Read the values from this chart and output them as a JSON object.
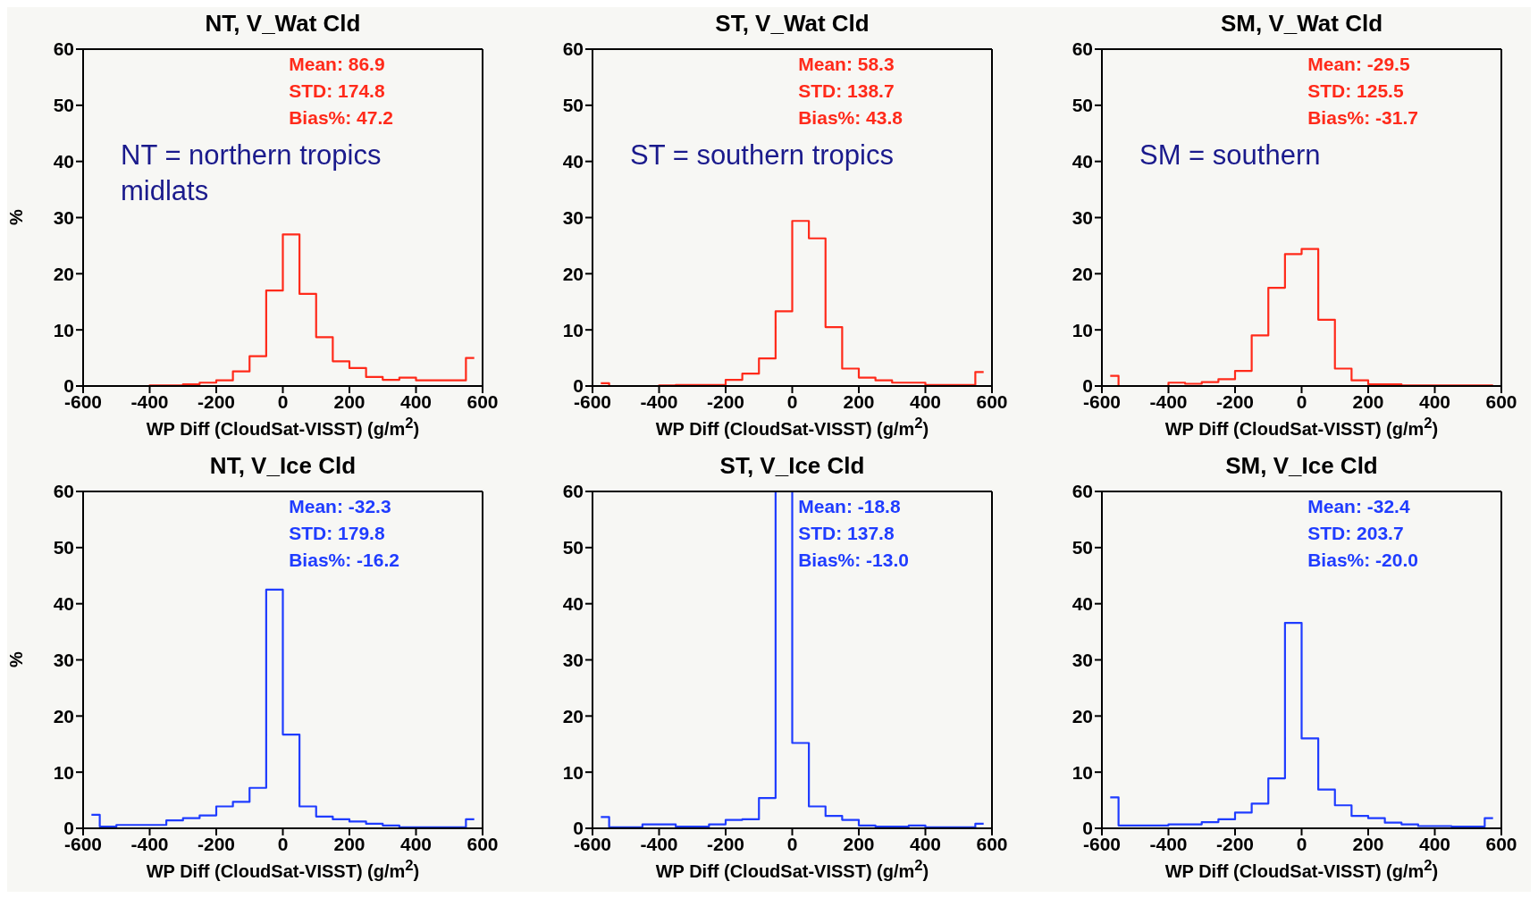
{
  "chart_data": [
    {
      "type": "histogram",
      "title": "NT, V_Wat Cld",
      "xlabel": "WP Diff (CloudSat-VISST) (g/m$^{2}$)",
      "ylabel": "%",
      "color": "#ff2a1a",
      "xlim": [
        -600,
        600
      ],
      "xticks": [
        -600,
        -400,
        -200,
        0,
        200,
        400,
        600
      ],
      "ylim": [
        0,
        60
      ],
      "yticks": [
        0,
        10,
        20,
        30,
        40,
        50,
        60
      ],
      "bins": [
        -575,
        -550,
        -500,
        -450,
        -400,
        -350,
        -300,
        -250,
        -200,
        -150,
        -100,
        -50,
        0,
        50,
        100,
        150,
        200,
        250,
        300,
        350,
        400,
        450,
        500,
        550,
        575
      ],
      "values": [
        0,
        0,
        0,
        0,
        0.1,
        0.1,
        0.3,
        0.6,
        1,
        2.6,
        5.3,
        17,
        27,
        16.4,
        8.7,
        4.4,
        3.2,
        1.6,
        1.1,
        1.5,
        1,
        1,
        1,
        5
      ],
      "annotations": [
        "Mean: 86.9",
        "STD: 174.8",
        "Bias%: 47.2",
        "NT = northern tropics midlats"
      ]
    },
    {
      "type": "histogram",
      "title": "ST, V_Wat Cld",
      "xlabel": "WP Diff (CloudSat-VISST) (g/m$^{2}$)",
      "color": "#ff2a1a",
      "xlim": [
        -600,
        600
      ],
      "xticks": [
        -600,
        -400,
        -200,
        0,
        200,
        400,
        600
      ],
      "ylim": [
        0,
        60
      ],
      "yticks": [
        0,
        10,
        20,
        30,
        40,
        50,
        60
      ],
      "bins": [
        -575,
        -550,
        -500,
        -450,
        -400,
        -350,
        -300,
        -250,
        -200,
        -150,
        -100,
        -50,
        0,
        50,
        100,
        150,
        200,
        250,
        300,
        350,
        400,
        450,
        500,
        550,
        575
      ],
      "values": [
        0.5,
        0,
        0,
        0,
        0.1,
        0.2,
        0.2,
        0.2,
        1.1,
        2.2,
        4.9,
        13.3,
        29.4,
        26.3,
        10.5,
        3.1,
        1.5,
        1,
        0.6,
        0.6,
        0.2,
        0.2,
        0.2,
        2.5
      ],
      "annotations": [
        "Mean: 58.3",
        "STD: 138.7",
        "Bias%: 43.8",
        "ST = southern tropics"
      ]
    },
    {
      "type": "histogram",
      "title": "SM, V_Wat Cld",
      "xlabel": "WP Diff (CloudSat-VISST) (g/m$^{2}$)",
      "color": "#ff2a1a",
      "xlim": [
        -600,
        600
      ],
      "xticks": [
        -600,
        -400,
        -200,
        0,
        200,
        400,
        600
      ],
      "ylim": [
        0,
        60
      ],
      "yticks": [
        0,
        10,
        20,
        30,
        40,
        50,
        60
      ],
      "bins": [
        -575,
        -550,
        -500,
        -450,
        -400,
        -350,
        -300,
        -250,
        -200,
        -150,
        -100,
        -50,
        0,
        50,
        100,
        150,
        200,
        250,
        300,
        350,
        400,
        450,
        500,
        550,
        575
      ],
      "values": [
        1.8,
        0,
        0,
        0,
        0.6,
        0.4,
        0.7,
        1.2,
        2.7,
        9,
        17.5,
        23.5,
        24.4,
        11.8,
        3.1,
        1,
        0.3,
        0.3,
        0.1,
        0.1,
        0.1,
        0.1,
        0.1,
        0.1
      ],
      "annotations": [
        "Mean: -29.5",
        "STD: 125.5",
        "Bias%: -31.7",
        "SM = southern"
      ]
    },
    {
      "type": "histogram",
      "title": "NT, V_Ice Cld",
      "xlabel": "WP Diff (CloudSat-VISST) (g/m$^{2}$)",
      "ylabel": "%",
      "color": "#1f3cff",
      "xlim": [
        -600,
        600
      ],
      "xticks": [
        -600,
        -400,
        -200,
        0,
        200,
        400,
        600
      ],
      "ylim": [
        0,
        60
      ],
      "yticks": [
        0,
        10,
        20,
        30,
        40,
        50,
        60
      ],
      "bins": [
        -575,
        -550,
        -500,
        -450,
        -400,
        -350,
        -300,
        -250,
        -200,
        -150,
        -100,
        -50,
        0,
        50,
        100,
        150,
        200,
        250,
        300,
        350,
        400,
        450,
        500,
        550,
        575
      ],
      "values": [
        2.4,
        0.3,
        0.6,
        0.6,
        0.6,
        1.4,
        1.8,
        2.3,
        3.9,
        4.7,
        7.2,
        42.5,
        16.7,
        3.9,
        2.1,
        1.6,
        1.2,
        0.8,
        0.5,
        0.2,
        0.2,
        0.2,
        0.2,
        1.6
      ],
      "annotations": [
        "Mean: -32.3",
        "STD: 179.8",
        "Bias%: -16.2"
      ]
    },
    {
      "type": "histogram",
      "title": "ST, V_Ice Cld",
      "xlabel": "WP Diff (CloudSat-VISST) (g/m$^{2}$)",
      "color": "#1f3cff",
      "xlim": [
        -600,
        600
      ],
      "xticks": [
        -600,
        -400,
        -200,
        0,
        200,
        400,
        600
      ],
      "ylim": [
        0,
        60
      ],
      "yticks": [
        0,
        10,
        20,
        30,
        40,
        50,
        60
      ],
      "bins": [
        -575,
        -550,
        -500,
        -450,
        -400,
        -350,
        -300,
        -250,
        -200,
        -150,
        -100,
        -50,
        0,
        50,
        100,
        150,
        200,
        250,
        300,
        350,
        400,
        450,
        500,
        550,
        575
      ],
      "values": [
        2,
        0.2,
        0.2,
        0.7,
        0.7,
        0.3,
        0.3,
        0.7,
        1.5,
        1.6,
        5.4,
        60,
        15.2,
        3.9,
        2.2,
        1.5,
        0.5,
        0.3,
        0.3,
        0.5,
        0.2,
        0.2,
        0.2,
        0.8
      ],
      "annotations": [
        "Mean: -18.8",
        "STD: 137.8",
        "Bias%: -13.0"
      ]
    },
    {
      "type": "histogram",
      "title": "SM, V_Ice Cld",
      "xlabel": "WP Diff (CloudSat-VISST) (g/m$^{2}$)",
      "color": "#1f3cff",
      "xlim": [
        -600,
        600
      ],
      "xticks": [
        -600,
        -400,
        -200,
        0,
        200,
        400,
        600
      ],
      "ylim": [
        0,
        60
      ],
      "yticks": [
        0,
        10,
        20,
        30,
        40,
        50,
        60
      ],
      "bins": [
        -575,
        -550,
        -500,
        -450,
        -400,
        -350,
        -300,
        -250,
        -200,
        -150,
        -100,
        -50,
        0,
        50,
        100,
        150,
        200,
        250,
        300,
        350,
        400,
        450,
        500,
        550,
        575
      ],
      "values": [
        5.5,
        0.5,
        0.5,
        0.5,
        0.7,
        0.7,
        1.1,
        1.6,
        2.8,
        4.4,
        8.9,
        36.6,
        16,
        6.9,
        4.1,
        2.2,
        1.8,
        1,
        0.7,
        0.4,
        0.4,
        0.3,
        0.3,
        1.8
      ],
      "annotations": [
        "Mean: -32.4",
        "STD: 203.7",
        "Bias%: -20.0"
      ]
    }
  ]
}
